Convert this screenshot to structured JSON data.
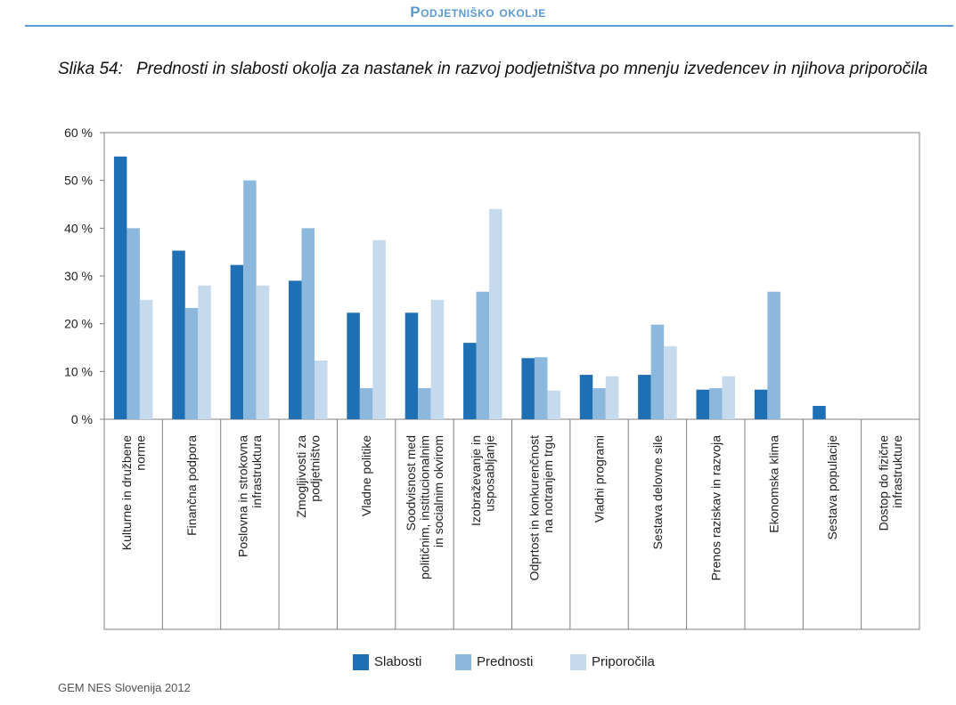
{
  "header": {
    "section_title": "Podjetniško okolje"
  },
  "figure": {
    "label": "Slika 54:",
    "title": "Prednosti in slabosti okolja za nastanek in razvoj podjetništva po mnenju izvedencev in njihova priporočila"
  },
  "source": "GEM NES Slovenija 2012",
  "chart_data": {
    "type": "bar",
    "ylim": [
      0,
      60
    ],
    "yticks": [
      "0 %",
      "10 %",
      "20 %",
      "30 %",
      "40 %",
      "50 %",
      "60 %"
    ],
    "grid": false,
    "legend_position": "bottom",
    "categories": [
      "Kulturne in družbene norme",
      "Finančna podpora",
      "Poslovna in strokovna infrastruktura",
      "Zmogljivosti za podjetništvo",
      "Vladne politike",
      "Soodvisnost med političnim, institucionalnim in socialnim okvirom",
      "Izobraževanje in usposabljanje",
      "Odprtost in konkurenčnost na notranjem trgu",
      "Vladni programi",
      "Sestava delovne sile",
      "Prenos raziskav in razvoja",
      "Ekonomska klima",
      "Sestava populacije",
      "Dostop do fizične infrastrukture"
    ],
    "category_lines": [
      [
        "Kulturne in družbene",
        "norme"
      ],
      [
        "Finančna podpora"
      ],
      [
        "Poslovna in strokovna",
        "infrastruktura"
      ],
      [
        "Zmogljivosti za",
        "podjetništvo"
      ],
      [
        "Vladne politike"
      ],
      [
        "Soodvisnost med",
        "političnim, institucionalnim",
        "in socialnim okvirom"
      ],
      [
        "Izobraževanje in",
        "usposabljanje"
      ],
      [
        "Odprtost in konkurenčnost",
        "na notranjem trgu"
      ],
      [
        "Vladni programi"
      ],
      [
        "Sestava delovne sile"
      ],
      [
        "Prenos raziskav in razvoja"
      ],
      [
        "Ekonomska klima"
      ],
      [
        "Sestava populacije"
      ],
      [
        "Dostop do fizične",
        "infrastrukture"
      ]
    ],
    "series": [
      {
        "name": "Slabosti",
        "color": "#1f6fb4",
        "values": [
          55,
          35.3,
          32.3,
          29,
          22.3,
          22.3,
          16,
          12.8,
          9.3,
          9.3,
          6.2,
          6.2,
          2.8,
          0
        ]
      },
      {
        "name": "Prednosti",
        "color": "#8db8dd",
        "values": [
          40,
          23.3,
          50,
          40,
          6.5,
          6.5,
          26.7,
          13,
          6.5,
          19.8,
          6.5,
          26.7,
          0,
          0
        ]
      },
      {
        "name": "Priporočila",
        "color": "#c6daee",
        "values": [
          25,
          28,
          28,
          12.3,
          37.5,
          25,
          44,
          6,
          9,
          15.3,
          9,
          0,
          0,
          0
        ]
      }
    ]
  }
}
